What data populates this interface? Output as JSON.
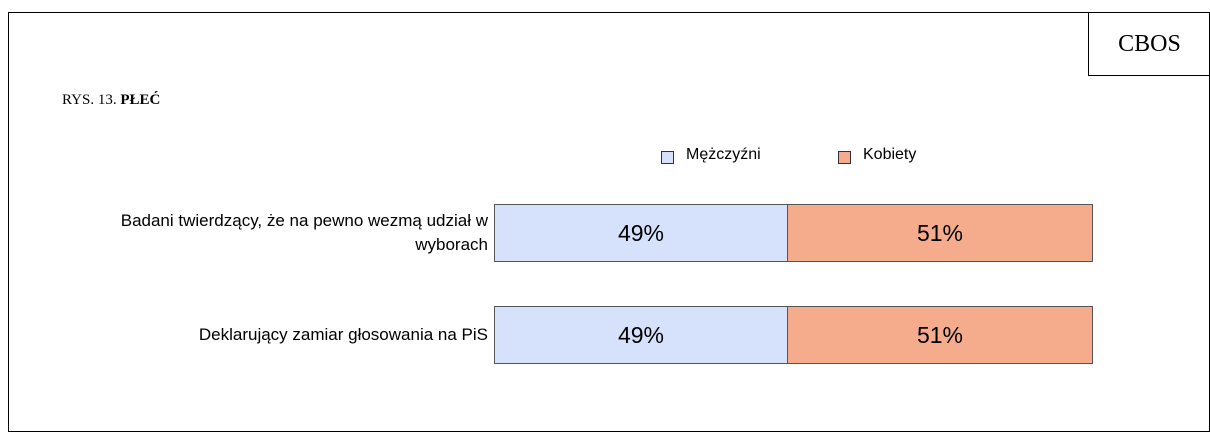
{
  "chart_data": {
    "type": "bar",
    "orientation": "horizontal",
    "stacked": true,
    "source": "CBOS",
    "figure_label": "RYS. 13.",
    "title": "PŁEĆ",
    "categories": [
      "Badani twierdzący, że na pewno wezmą udział w wyborach",
      "Deklarujący zamiar głosowania na PiS"
    ],
    "xlim": [
      0,
      100
    ],
    "series": [
      {
        "name": "Mężczyźni",
        "color": "#d6e2fb",
        "values": [
          49,
          49
        ],
        "value_labels": [
          "49%",
          "49%"
        ]
      },
      {
        "name": "Kobiety",
        "color": "#f4ac8c",
        "values": [
          51,
          51
        ],
        "value_labels": [
          "51%",
          "51%"
        ]
      }
    ]
  }
}
